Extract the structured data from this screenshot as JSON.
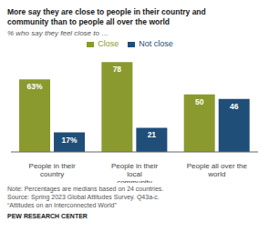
{
  "chart_data": {
    "type": "bar",
    "title": "More say they are close to people in their country and\ncommunity than to people all over the world",
    "subtitle": "% who say they feel close to …",
    "categories": [
      "People in their country",
      "People in their local\ncommunity",
      "People all over the world"
    ],
    "series": [
      {
        "name": "Close",
        "color": "#8a9a2e",
        "values": [
          63,
          78,
          50
        ],
        "value_labels": [
          "63%",
          "78",
          "50"
        ]
      },
      {
        "name": "Not close",
        "color": "#1f4e79",
        "values": [
          17,
          21,
          46
        ],
        "value_labels": [
          "17%",
          "21",
          "46"
        ]
      }
    ],
    "ylim": [
      0,
      90
    ],
    "data_labels": true,
    "tick_labels": "x",
    "legend": "top",
    "grid": false,
    "annotations": [
      "Note: Percentages are medians based on 24 countries.\nSource: Spring 2023 Global Attitudes Survey. Q43a-c.\n“Attitudes on an Interconnected World”",
      "PEW RESEARCH CENTER"
    ]
  }
}
